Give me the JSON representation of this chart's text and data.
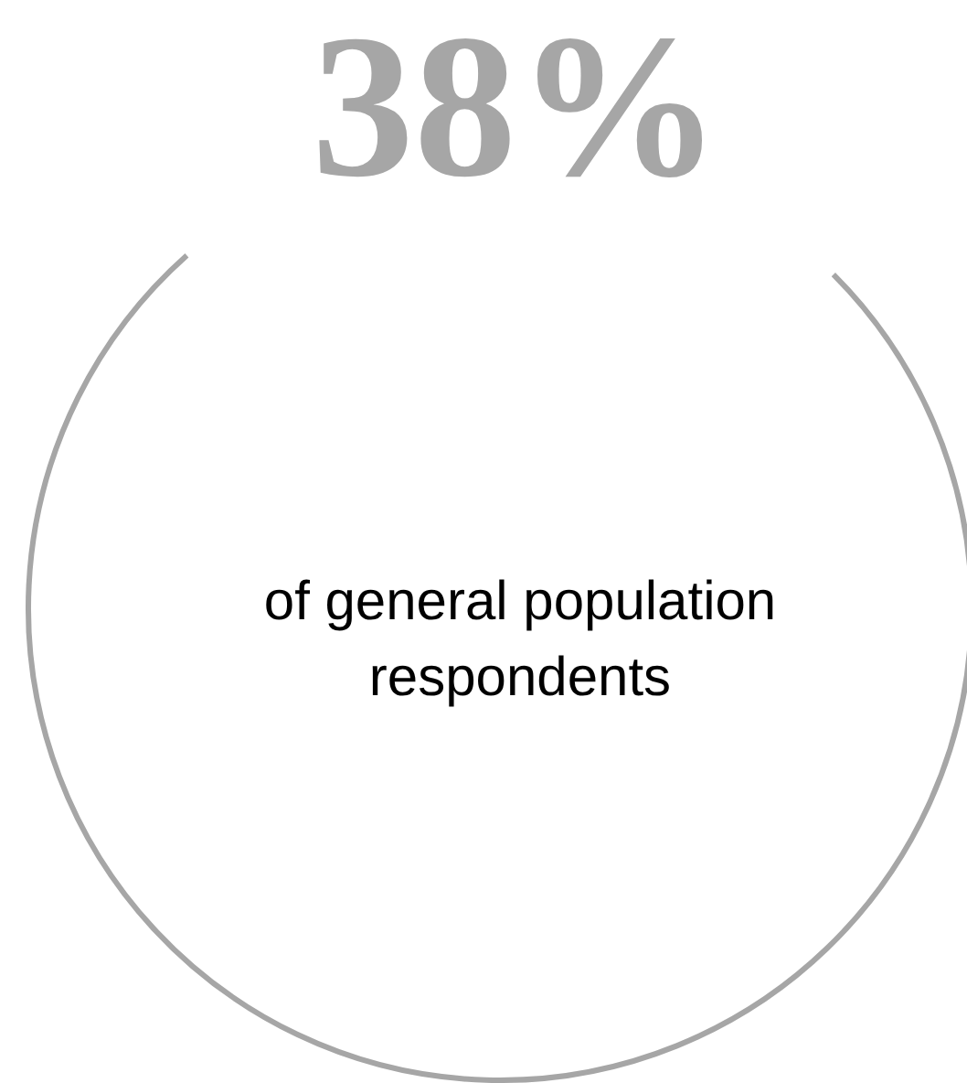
{
  "chart_data": {
    "type": "other",
    "categories": [
      null
    ],
    "values": [
      38
    ],
    "value_labels": [
      "38%"
    ],
    "annotations": [
      "of general population respondents"
    ]
  }
}
